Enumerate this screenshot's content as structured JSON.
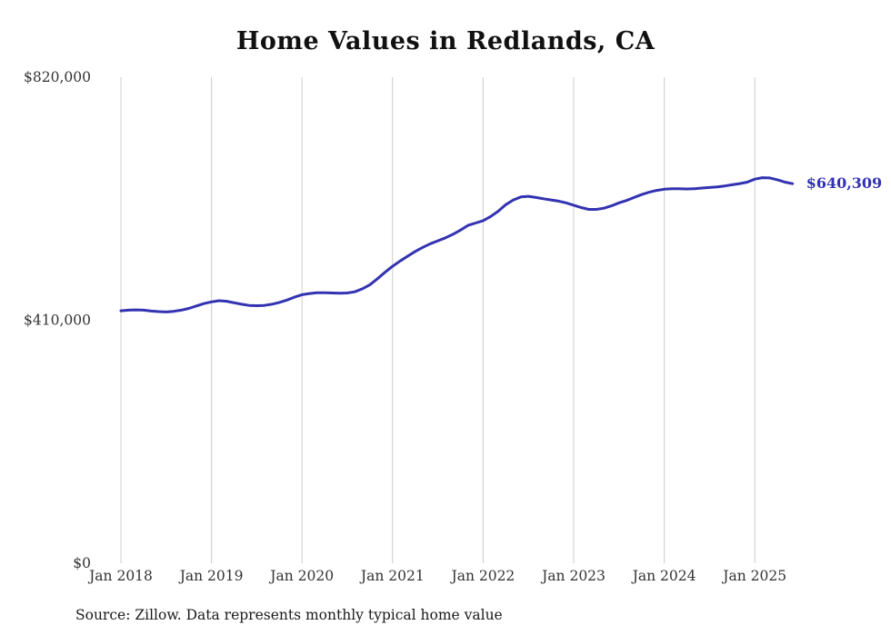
{
  "title": "Home Values in Redlands, CA",
  "footer": {
    "source_text": "Source: Zillow. Data represents monthly typical home value"
  },
  "colors": {
    "line": "#3333b2",
    "end_label": "#3333b2",
    "grid": "#cccccc",
    "tick_text": "#333333",
    "title_text": "#111111"
  },
  "chart_data": {
    "type": "line",
    "title": "Home Values in Redlands, CA",
    "xlabel": "",
    "ylabel": "",
    "ylim": [
      0,
      820000
    ],
    "grid": "vertical-only",
    "legend": "none",
    "series_name": "Monthly typical home value",
    "yticks": [
      {
        "value": 0,
        "label": "$0"
      },
      {
        "value": 410000,
        "label": "$410,000"
      },
      {
        "value": 820000,
        "label": "$820,000"
      }
    ],
    "xticks": [
      {
        "month_index": 0,
        "label": "Jan 2018"
      },
      {
        "month_index": 12,
        "label": "Jan 2019"
      },
      {
        "month_index": 24,
        "label": "Jan 2020"
      },
      {
        "month_index": 36,
        "label": "Jan 2021"
      },
      {
        "month_index": 48,
        "label": "Jan 2022"
      },
      {
        "month_index": 60,
        "label": "Jan 2023"
      },
      {
        "month_index": 72,
        "label": "Jan 2024"
      },
      {
        "month_index": 84,
        "label": "Jan 2025"
      }
    ],
    "x": [
      "2018-01",
      "2018-02",
      "2018-03",
      "2018-04",
      "2018-05",
      "2018-06",
      "2018-07",
      "2018-08",
      "2018-09",
      "2018-10",
      "2018-11",
      "2018-12",
      "2019-01",
      "2019-02",
      "2019-03",
      "2019-04",
      "2019-05",
      "2019-06",
      "2019-07",
      "2019-08",
      "2019-09",
      "2019-10",
      "2019-11",
      "2019-12",
      "2020-01",
      "2020-02",
      "2020-03",
      "2020-04",
      "2020-05",
      "2020-06",
      "2020-07",
      "2020-08",
      "2020-09",
      "2020-10",
      "2020-11",
      "2020-12",
      "2021-01",
      "2021-02",
      "2021-03",
      "2021-04",
      "2021-05",
      "2021-06",
      "2021-07",
      "2021-08",
      "2021-09",
      "2021-10",
      "2021-11",
      "2021-12",
      "2022-01",
      "2022-02",
      "2022-03",
      "2022-04",
      "2022-05",
      "2022-06",
      "2022-07",
      "2022-08",
      "2022-09",
      "2022-10",
      "2022-11",
      "2022-12",
      "2023-01",
      "2023-02",
      "2023-03",
      "2023-04",
      "2023-05",
      "2023-06",
      "2023-07",
      "2023-08",
      "2023-09",
      "2023-10",
      "2023-11",
      "2023-12",
      "2024-01",
      "2024-02",
      "2024-03",
      "2024-04",
      "2024-05",
      "2024-06",
      "2024-07",
      "2024-08",
      "2024-09",
      "2024-10",
      "2024-11",
      "2024-12",
      "2025-01",
      "2025-02",
      "2025-03",
      "2025-04",
      "2025-05",
      "2025-06"
    ],
    "values": [
      426000,
      427000,
      427500,
      427000,
      425500,
      424500,
      424000,
      425000,
      427000,
      430000,
      434000,
      438000,
      441000,
      443000,
      442000,
      439500,
      437000,
      435000,
      434500,
      435000,
      437000,
      440000,
      444000,
      449000,
      453000,
      455000,
      456500,
      456500,
      456000,
      455500,
      456000,
      458000,
      463000,
      470000,
      480000,
      491000,
      501000,
      510000,
      518000,
      526000,
      533000,
      539000,
      544000,
      549000,
      555000,
      562000,
      570000,
      574000,
      578000,
      585000,
      594000,
      605000,
      613000,
      618000,
      619000,
      617000,
      615000,
      613000,
      611000,
      608000,
      604000,
      600000,
      597000,
      597000,
      599000,
      603000,
      608000,
      612000,
      617000,
      622000,
      626000,
      629000,
      631000,
      632000,
      632000,
      631500,
      632000,
      633000,
      634000,
      635000,
      636500,
      638500,
      640500,
      643000,
      648000,
      650500,
      650000,
      647000,
      643000,
      640309
    ],
    "last_value": 640309,
    "last_value_label": "$640,309"
  }
}
